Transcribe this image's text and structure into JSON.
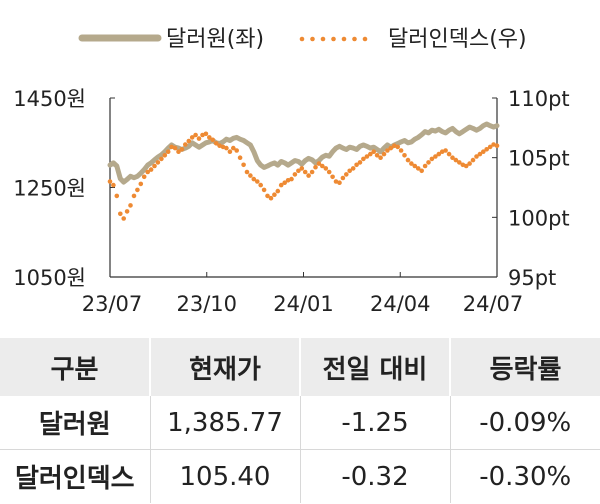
{
  "chart_data": {
    "type": "line",
    "legend": {
      "position": "top",
      "entries": [
        "달러원(좌)",
        "달러인덱스(우)"
      ]
    },
    "x_ticks": [
      "23/07",
      "23/10",
      "24/01",
      "24/04",
      "24/07"
    ],
    "y_left": {
      "ticks": [
        "1450원",
        "1250원",
        "1050원"
      ],
      "range": [
        1050,
        1450
      ]
    },
    "y_right": {
      "ticks": [
        "110pt",
        "105pt",
        "100pt",
        "95pt"
      ],
      "range": [
        95,
        110
      ]
    },
    "series": [
      {
        "name": "달러원(좌)",
        "axis": "left",
        "color": "#b5a98c",
        "style": "solid",
        "values": [
          1300,
          1305,
          1298,
          1270,
          1262,
          1268,
          1275,
          1272,
          1275,
          1282,
          1290,
          1300,
          1305,
          1312,
          1318,
          1323,
          1330,
          1338,
          1345,
          1340,
          1338,
          1335,
          1338,
          1342,
          1350,
          1345,
          1340,
          1345,
          1350,
          1352,
          1355,
          1350,
          1348,
          1352,
          1358,
          1355,
          1360,
          1362,
          1358,
          1355,
          1350,
          1345,
          1330,
          1310,
          1300,
          1295,
          1298,
          1302,
          1305,
          1300,
          1308,
          1305,
          1300,
          1305,
          1310,
          1308,
          1302,
          1310,
          1315,
          1312,
          1305,
          1310,
          1318,
          1322,
          1320,
          1330,
          1338,
          1342,
          1338,
          1335,
          1340,
          1338,
          1335,
          1342,
          1345,
          1342,
          1338,
          1340,
          1335,
          1330,
          1338,
          1345,
          1340,
          1345,
          1348,
          1352,
          1355,
          1350,
          1352,
          1358,
          1362,
          1368,
          1375,
          1372,
          1378,
          1376,
          1380,
          1375,
          1372,
          1378,
          1382,
          1375,
          1370,
          1375,
          1380,
          1385,
          1382,
          1378,
          1382,
          1388,
          1392,
          1388,
          1385,
          1388
        ]
      },
      {
        "name": "달러인덱스(우)",
        "axis": "right",
        "color": "#ee8a33",
        "style": "dotted",
        "values": [
          103.0,
          102.7,
          101.8,
          100.3,
          99.9,
          100.5,
          101.0,
          101.8,
          102.3,
          102.8,
          103.4,
          103.8,
          104.0,
          104.3,
          104.6,
          104.9,
          105.2,
          105.5,
          105.9,
          105.8,
          105.5,
          105.7,
          106.1,
          106.4,
          106.7,
          106.9,
          106.6,
          106.9,
          107.0,
          106.7,
          106.5,
          106.2,
          106.0,
          105.9,
          105.8,
          105.5,
          105.8,
          105.6,
          105.0,
          104.4,
          103.8,
          103.5,
          103.2,
          103.0,
          102.7,
          102.3,
          101.8,
          101.6,
          101.9,
          102.2,
          102.7,
          102.9,
          103.1,
          103.2,
          103.6,
          103.9,
          104.1,
          103.8,
          103.5,
          103.8,
          104.2,
          104.5,
          104.3,
          104.1,
          103.8,
          103.4,
          103.0,
          102.9,
          103.3,
          103.6,
          103.9,
          104.1,
          104.4,
          104.6,
          104.9,
          105.1,
          105.3,
          105.5,
          105.2,
          105.0,
          105.3,
          105.6,
          105.8,
          106.0,
          105.9,
          105.6,
          105.2,
          104.8,
          104.5,
          104.3,
          104.1,
          103.9,
          104.3,
          104.6,
          104.9,
          105.1,
          105.3,
          105.5,
          105.6,
          105.3,
          105.0,
          104.8,
          104.6,
          104.4,
          104.3,
          104.5,
          104.8,
          105.1,
          105.3,
          105.5,
          105.7,
          105.9,
          106.1,
          106.0
        ]
      }
    ]
  },
  "table": {
    "headers": [
      "구분",
      "현재가",
      "전일 대비",
      "등락률"
    ],
    "rows": [
      [
        "달러원",
        "1,385.77",
        "-1.25",
        "-0.09%"
      ],
      [
        "달러인덱스",
        "105.40",
        "-0.32",
        "-0.30%"
      ]
    ]
  }
}
